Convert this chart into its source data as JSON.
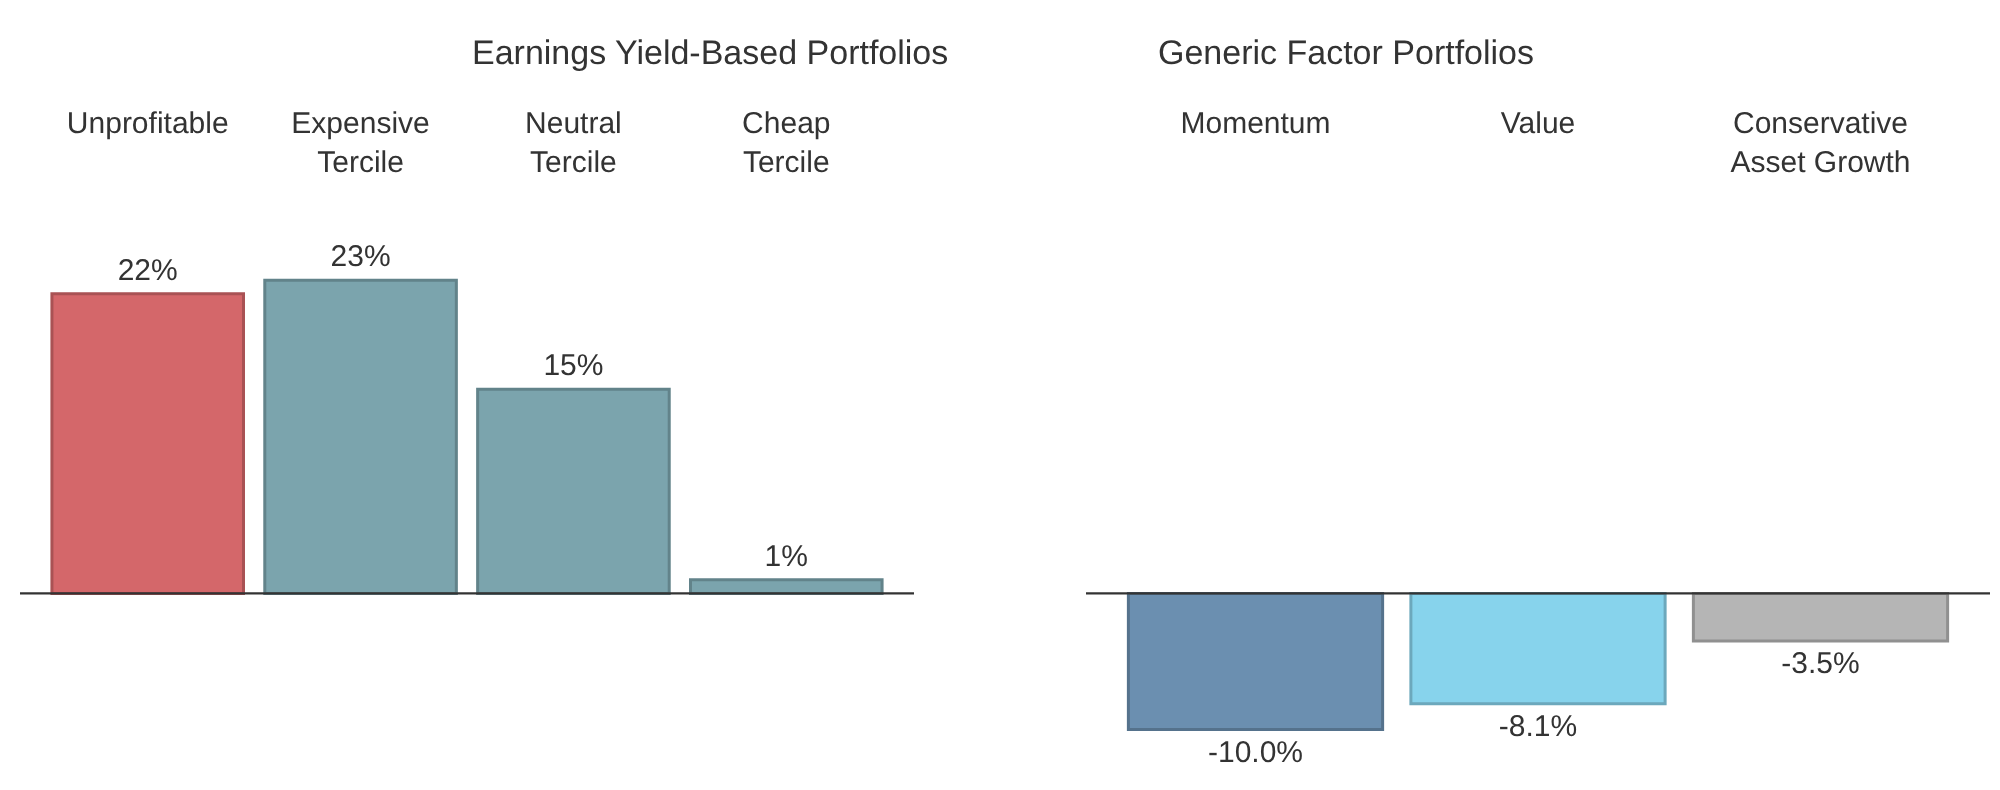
{
  "chart_data": [
    {
      "type": "bar",
      "title": "Earnings Yield-Based Portfolios",
      "categories": [
        "Unprofitable",
        "Expensive\nTercile",
        "Neutral\nTercile",
        "Cheap\nTercile"
      ],
      "values": [
        22,
        23,
        15,
        1
      ],
      "colors": [
        "#d4676a",
        "#7ba4ad",
        "#7ba4ad",
        "#7ba4ad"
      ],
      "value_labels": [
        "22%",
        "23%",
        "15%",
        "1%"
      ],
      "tick_labels": "x"
    },
    {
      "type": "bar",
      "title": "Generic Factor Portfolios",
      "categories": [
        "Momentum",
        "Value",
        "Conservative\nAsset Growth"
      ],
      "values": [
        -10.0,
        -8.1,
        -3.5
      ],
      "colors": [
        "#6b8fb0",
        "#87d3ec",
        "#b5b5b5"
      ],
      "value_labels": [
        "-10.0%",
        "-8.1%",
        "-3.5%"
      ],
      "tick_labels": "x"
    }
  ]
}
